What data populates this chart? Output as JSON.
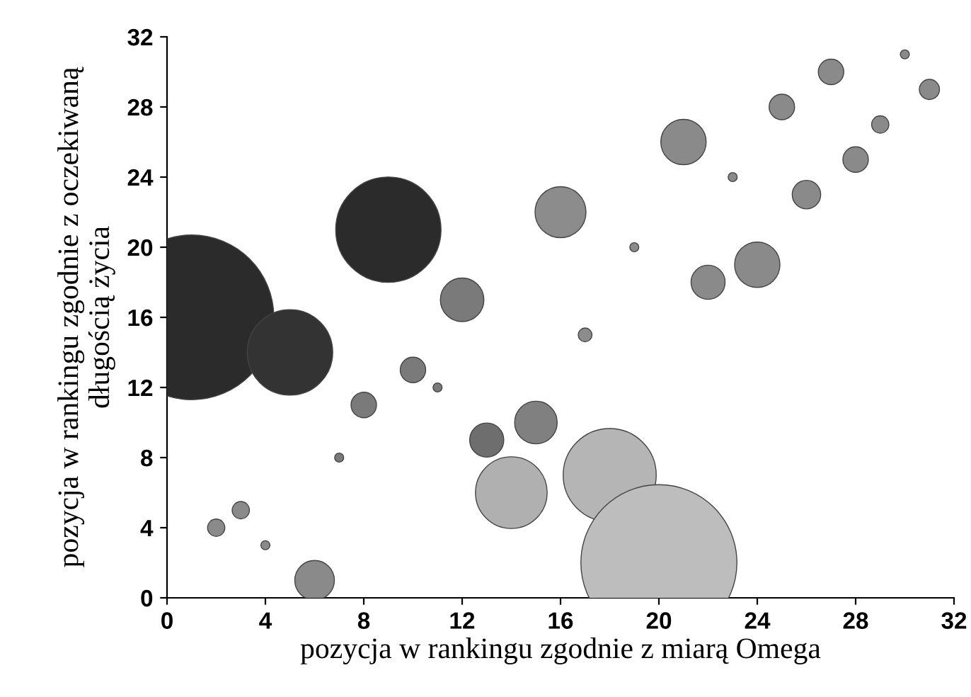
{
  "chart_data": {
    "type": "bubble",
    "xlabel": "pozycja w rankingu zgodnie z miarą Omega",
    "ylabel": "pozycja w rankingu zgodnie z oczekiwaną\ndługością życia",
    "x": [
      1,
      5,
      9,
      12,
      10,
      11,
      8,
      7,
      13,
      15,
      14,
      18,
      20,
      16,
      17,
      19,
      21,
      22,
      23,
      24,
      25,
      26,
      27,
      28,
      29,
      30,
      31,
      2,
      3,
      4,
      6
    ],
    "values": [
      16,
      14,
      21,
      17,
      13,
      12,
      11,
      8,
      9,
      10,
      6,
      7,
      2,
      22,
      15,
      20,
      26,
      18,
      24,
      19,
      28,
      23,
      30,
      25,
      27,
      31,
      29,
      4,
      5,
      3,
      1
    ],
    "sizes": [
      1,
      0.27,
      0.41,
      0.07,
      0.024,
      0.003,
      0.024,
      0.003,
      0.043,
      0.067,
      0.19,
      0.32,
      0.9,
      0.096,
      0.007,
      0.003,
      0.076,
      0.043,
      0.003,
      0.076,
      0.024,
      0.03,
      0.024,
      0.024,
      0.011,
      0.003,
      0.015,
      0.011,
      0.011,
      0.003,
      0.058
    ],
    "colors": [
      "#2b2b2b",
      "#333333",
      "#2b2b2b",
      "#7a7a7a",
      "#7a7a7a",
      "#7a7a7a",
      "#7a7a7a",
      "#7a7a7a",
      "#6e6e6e",
      "#808080",
      "#b0b0b0",
      "#b5b5b5",
      "#bdbdbd",
      "#8c8c8c",
      "#8c8c8c",
      "#8c8c8c",
      "#8a8a8a",
      "#8a8a8a",
      "#8a8a8a",
      "#8a8a8a",
      "#8a8a8a",
      "#8a8a8a",
      "#8a8a8a",
      "#8a8a8a",
      "#8a8a8a",
      "#8a8a8a",
      "#8a8a8a",
      "#8a8a8a",
      "#8a8a8a",
      "#8a8a8a",
      "#8a8a8a"
    ],
    "xlim": [
      0,
      32
    ],
    "xticks": [
      0,
      4,
      8,
      12,
      16,
      20,
      24,
      28,
      32
    ],
    "ylim": [
      0,
      32
    ],
    "yticks": [
      0,
      4,
      8,
      12,
      16,
      20,
      24,
      28,
      32
    ],
    "grid": false,
    "legend": false
  }
}
